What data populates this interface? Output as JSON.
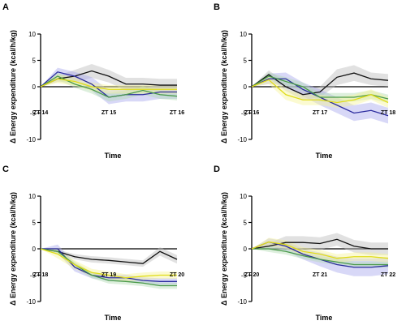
{
  "chart_data": [
    {
      "panel": "A",
      "type": "line",
      "ylabel": "Δ Energy expenditure (kcal/h/kg)",
      "xlabel": "Time",
      "ylim": [
        -10,
        10
      ],
      "yticks": [
        -10,
        -5,
        0,
        5,
        10
      ],
      "xlim": [
        0,
        8
      ],
      "x": [
        0,
        1,
        2,
        3,
        4,
        5,
        6,
        7,
        8
      ],
      "xticks": [
        {
          "x": 0,
          "label": "ZT 14"
        },
        {
          "x": 4,
          "label": "ZT 15"
        },
        {
          "x": 8,
          "label": "ZT 16"
        }
      ],
      "series": [
        {
          "color": "#111111",
          "band": "#bdbdbd",
          "values": [
            0,
            1.5,
            2,
            3,
            2,
            0.5,
            0.5,
            0.3,
            0.3
          ],
          "err": [
            0,
            0.6,
            1.2,
            1.3,
            1.2,
            1.2,
            1.2,
            1.2,
            1.2
          ]
        },
        {
          "color": "#2b2b9e",
          "band": "#a9a9ee",
          "values": [
            0,
            2.8,
            2,
            0.5,
            -2,
            -1.5,
            -1.5,
            -1,
            -1
          ],
          "err": [
            0,
            0.8,
            0.8,
            1.3,
            1.3,
            1.3,
            1.3,
            1.3,
            1.3
          ]
        },
        {
          "color": "#4a9a4a",
          "band": "#b3dcb3",
          "values": [
            0,
            2,
            0.5,
            -0.5,
            -2,
            -1.5,
            -0.7,
            -1.5,
            -1.8
          ],
          "err": [
            0,
            0.7,
            0.7,
            0.8,
            0.8,
            0.8,
            0.8,
            0.8,
            0.8
          ]
        },
        {
          "color": "#e0dc1a",
          "band": "#f6f59a",
          "values": [
            0,
            1.5,
            1,
            0,
            -0.5,
            -0.5,
            -0.5,
            -0.5,
            -0.5
          ],
          "err": [
            0,
            0.8,
            0.8,
            0.8,
            0.8,
            0.8,
            0.8,
            0.8,
            0.8
          ]
        }
      ]
    },
    {
      "panel": "B",
      "type": "line",
      "ylabel": "Δ Energy expenditure (kcal/h/kg)",
      "xlabel": "Time",
      "ylim": [
        -10,
        10
      ],
      "yticks": [
        -10,
        -5,
        0,
        5,
        10
      ],
      "xlim": [
        0,
        8
      ],
      "x": [
        0,
        1,
        2,
        3,
        4,
        5,
        6,
        7,
        8
      ],
      "xticks": [
        {
          "x": 0,
          "label": "ZT 16"
        },
        {
          "x": 4,
          "label": "ZT 17"
        },
        {
          "x": 8,
          "label": "ZT 18"
        }
      ],
      "series": [
        {
          "color": "#111111",
          "band": "#bdbdbd",
          "values": [
            0,
            2.3,
            0,
            -1.5,
            -1,
            1.8,
            2.6,
            1.5,
            1.2
          ],
          "err": [
            0,
            0.8,
            0.8,
            1,
            1,
            1.5,
            1.5,
            1.2,
            1.2
          ]
        },
        {
          "color": "#2b2b9e",
          "band": "#a9a9ee",
          "values": [
            0,
            1.5,
            1.5,
            -0.5,
            -2,
            -3.5,
            -5,
            -4.5,
            -5.5
          ],
          "err": [
            0,
            1,
            1.2,
            1.3,
            1.5,
            1.5,
            1.5,
            1.5,
            1.5
          ]
        },
        {
          "color": "#4a9a4a",
          "band": "#b3dcb3",
          "values": [
            0,
            2,
            1,
            0,
            -2,
            -2,
            -2,
            -1.5,
            -2.3
          ],
          "err": [
            0,
            0.7,
            0.8,
            0.8,
            0.8,
            0.8,
            0.8,
            0.8,
            0.8
          ]
        },
        {
          "color": "#e0dc1a",
          "band": "#f6f59a",
          "values": [
            0,
            1.3,
            -1.5,
            -2.5,
            -2.5,
            -3,
            -2.5,
            -1.5,
            -3
          ],
          "err": [
            0,
            0.8,
            1,
            1,
            1,
            1,
            1,
            1,
            1
          ]
        }
      ]
    },
    {
      "panel": "C",
      "type": "line",
      "ylabel": "Δ Energy expenditure (kcal/h/kg)",
      "xlabel": "Time",
      "ylim": [
        -10,
        10
      ],
      "yticks": [
        -10,
        -5,
        0,
        5,
        10
      ],
      "xlim": [
        0,
        8
      ],
      "x": [
        0,
        1,
        2,
        3,
        4,
        5,
        6,
        7,
        8
      ],
      "xticks": [
        {
          "x": 0,
          "label": "ZT 18"
        },
        {
          "x": 4,
          "label": "ZT 19"
        },
        {
          "x": 8,
          "label": "ZT 20"
        }
      ],
      "series": [
        {
          "color": "#111111",
          "band": "#bdbdbd",
          "values": [
            0,
            -0.5,
            -1.5,
            -2,
            -2.2,
            -2.5,
            -2.8,
            -0.5,
            -2
          ],
          "err": [
            0,
            0.3,
            0.5,
            0.6,
            0.6,
            0.6,
            0.6,
            0.8,
            0.8
          ]
        },
        {
          "color": "#2b2b9e",
          "band": "#a9a9ee",
          "values": [
            0,
            0,
            -3.5,
            -5,
            -5.5,
            -5.5,
            -6,
            -6.2,
            -6.2
          ],
          "err": [
            0,
            0.8,
            0.8,
            0.6,
            0.6,
            0.6,
            0.6,
            0.6,
            0.6
          ]
        },
        {
          "color": "#4a9a4a",
          "band": "#b3dcb3",
          "values": [
            0,
            -0.5,
            -3,
            -5,
            -6,
            -6.2,
            -6.5,
            -7,
            -7
          ],
          "err": [
            0,
            0.6,
            0.6,
            0.6,
            0.6,
            0.6,
            0.6,
            0.6,
            0.6
          ]
        },
        {
          "color": "#e0dc1a",
          "band": "#f6f59a",
          "values": [
            0,
            -1,
            -3,
            -4.5,
            -5,
            -5.5,
            -5.2,
            -5,
            -5
          ],
          "err": [
            0,
            0.8,
            0.8,
            0.7,
            0.7,
            0.7,
            0.7,
            0.7,
            0.7
          ]
        }
      ]
    },
    {
      "panel": "D",
      "type": "line",
      "ylabel": "Δ Energy expenditure (kcal/h/kg)",
      "xlabel": "Time",
      "ylim": [
        -10,
        10
      ],
      "yticks": [
        -10,
        -5,
        0,
        5,
        10
      ],
      "xlim": [
        0,
        8
      ],
      "x": [
        0,
        1,
        2,
        3,
        4,
        5,
        6,
        7,
        8
      ],
      "xticks": [
        {
          "x": 0,
          "label": "ZT 20"
        },
        {
          "x": 4,
          "label": "ZT 21"
        },
        {
          "x": 8,
          "label": "ZT 22"
        }
      ],
      "series": [
        {
          "color": "#111111",
          "band": "#bdbdbd",
          "values": [
            0,
            0.5,
            1.2,
            1.2,
            1,
            1.8,
            0.5,
            0,
            0
          ],
          "err": [
            0,
            0.6,
            1.2,
            1.2,
            1.2,
            1.2,
            1.2,
            1.2,
            1.2
          ]
        },
        {
          "color": "#2b2b9e",
          "band": "#a9a9ee",
          "values": [
            0,
            1.3,
            0.5,
            -1,
            -2,
            -3,
            -3.5,
            -3.5,
            -3.2
          ],
          "err": [
            0,
            0.7,
            0.9,
            1,
            1.3,
            1.5,
            1.7,
            1.7,
            1.6
          ]
        },
        {
          "color": "#4a9a4a",
          "band": "#b3dcb3",
          "values": [
            0,
            0,
            -0.5,
            -1.3,
            -2,
            -2.5,
            -3,
            -3,
            -3
          ],
          "err": [
            0,
            0.6,
            0.6,
            0.6,
            0.6,
            0.6,
            0.6,
            0.6,
            0.6
          ]
        },
        {
          "color": "#e0dc1a",
          "band": "#f6f59a",
          "values": [
            0,
            1.3,
            0.8,
            -0.5,
            -1,
            -1.8,
            -1.5,
            -1.5,
            -1.8
          ],
          "err": [
            0,
            0.8,
            0.8,
            0.8,
            0.8,
            0.8,
            0.8,
            0.8,
            0.8
          ]
        }
      ]
    }
  ]
}
